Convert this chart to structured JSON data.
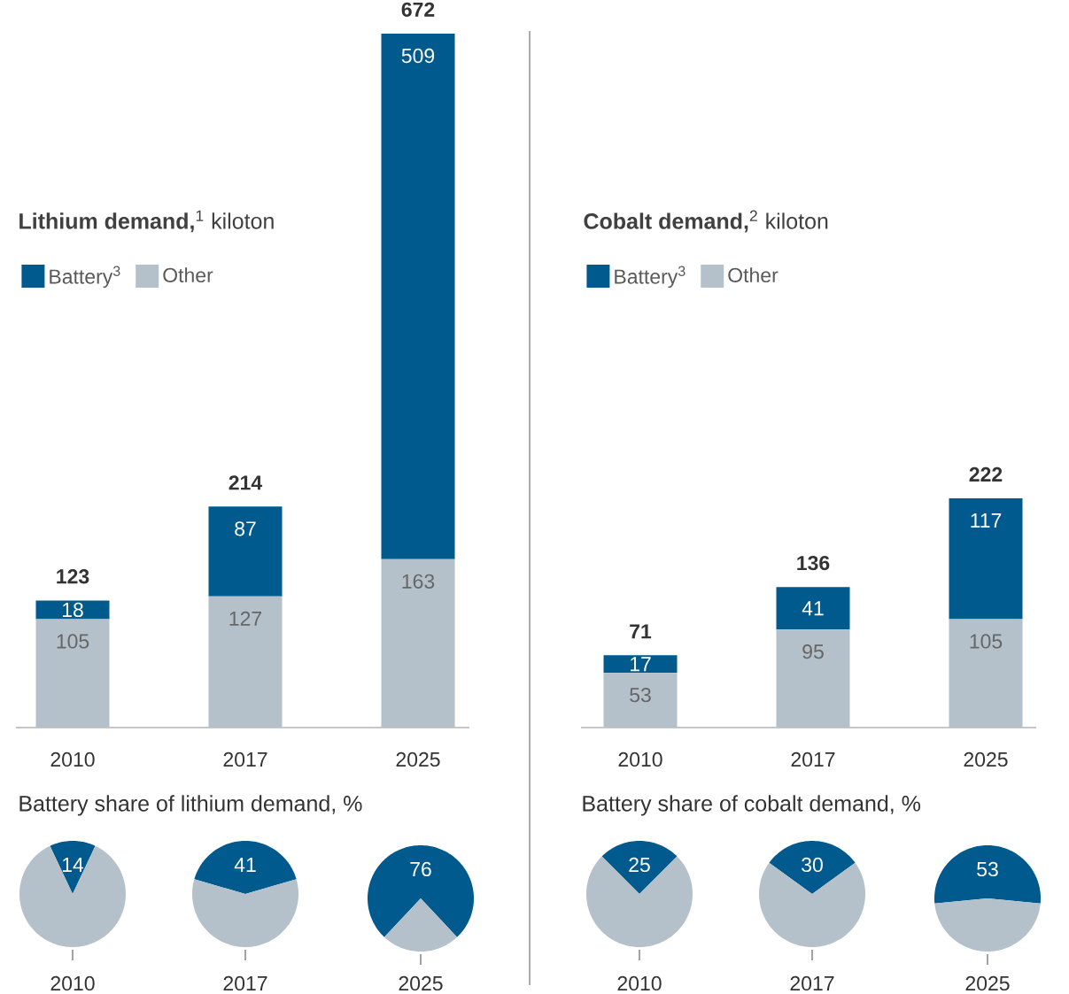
{
  "chart_data": [
    {
      "type": "bar",
      "title": "**Lithium demand,**$^{1}$ kiloton",
      "categories": [
        "2010",
        "2017",
        "2025"
      ],
      "stacked": true,
      "data_labels": true,
      "totals": [
        "123",
        "214",
        "672"
      ],
      "legend": "top left",
      "series": [
        {
          "name": "Other",
          "color": "#b4c1ca",
          "values": [
            105,
            127,
            163
          ]
        },
        {
          "name": "Battery$^{3}$",
          "color": "#005a8e",
          "values": [
            18,
            87,
            509
          ]
        }
      ]
    },
    {
      "type": "bar",
      "title": "**Cobalt demand,**$^{2}$ kiloton",
      "categories": [
        "2010",
        "2017",
        "2025"
      ],
      "stacked": true,
      "data_labels": true,
      "totals": [
        "71",
        "136",
        "222"
      ],
      "legend": "top left",
      "series": [
        {
          "name": "Other",
          "color": "#b4c1ca",
          "values": [
            53,
            95,
            105
          ]
        },
        {
          "name": "Battery$^{3}$",
          "color": "#005a8e",
          "values": [
            17,
            41,
            117
          ]
        }
      ]
    },
    {
      "type": "pie",
      "title": "Battery share of lithium demand, %",
      "xlabel": "2010",
      "categories": [
        null,
        null
      ],
      "values": [
        14,
        86
      ],
      "colors": [
        "#005a8e",
        "#b4c1ca"
      ],
      "value_labels": [
        "14",
        null
      ]
    },
    {
      "type": "pie",
      "xlabel": "2017",
      "categories": [
        null,
        null
      ],
      "values": [
        41,
        59
      ],
      "colors": [
        "#005a8e",
        "#b4c1ca"
      ],
      "value_labels": [
        "41",
        null
      ]
    },
    {
      "type": "pie",
      "xlabel": "2025",
      "categories": [
        null,
        null
      ],
      "values": [
        76,
        24
      ],
      "colors": [
        "#005a8e",
        "#b4c1ca"
      ],
      "value_labels": [
        "76",
        null
      ]
    },
    {
      "type": "pie",
      "title": "Battery share of cobalt demand, %",
      "xlabel": "2010",
      "categories": [
        null,
        null
      ],
      "values": [
        25,
        75
      ],
      "colors": [
        "#005a8e",
        "#b4c1ca"
      ],
      "value_labels": [
        "25",
        null
      ]
    },
    {
      "type": "pie",
      "xlabel": "2017",
      "categories": [
        null,
        null
      ],
      "values": [
        30,
        70
      ],
      "colors": [
        "#005a8e",
        "#b4c1ca"
      ],
      "value_labels": [
        "30",
        null
      ]
    },
    {
      "type": "pie",
      "xlabel": "2025",
      "categories": [
        null,
        null
      ],
      "values": [
        53,
        47
      ],
      "colors": [
        "#005a8e",
        "#b4c1ca"
      ],
      "value_labels": [
        "53",
        null
      ]
    }
  ]
}
